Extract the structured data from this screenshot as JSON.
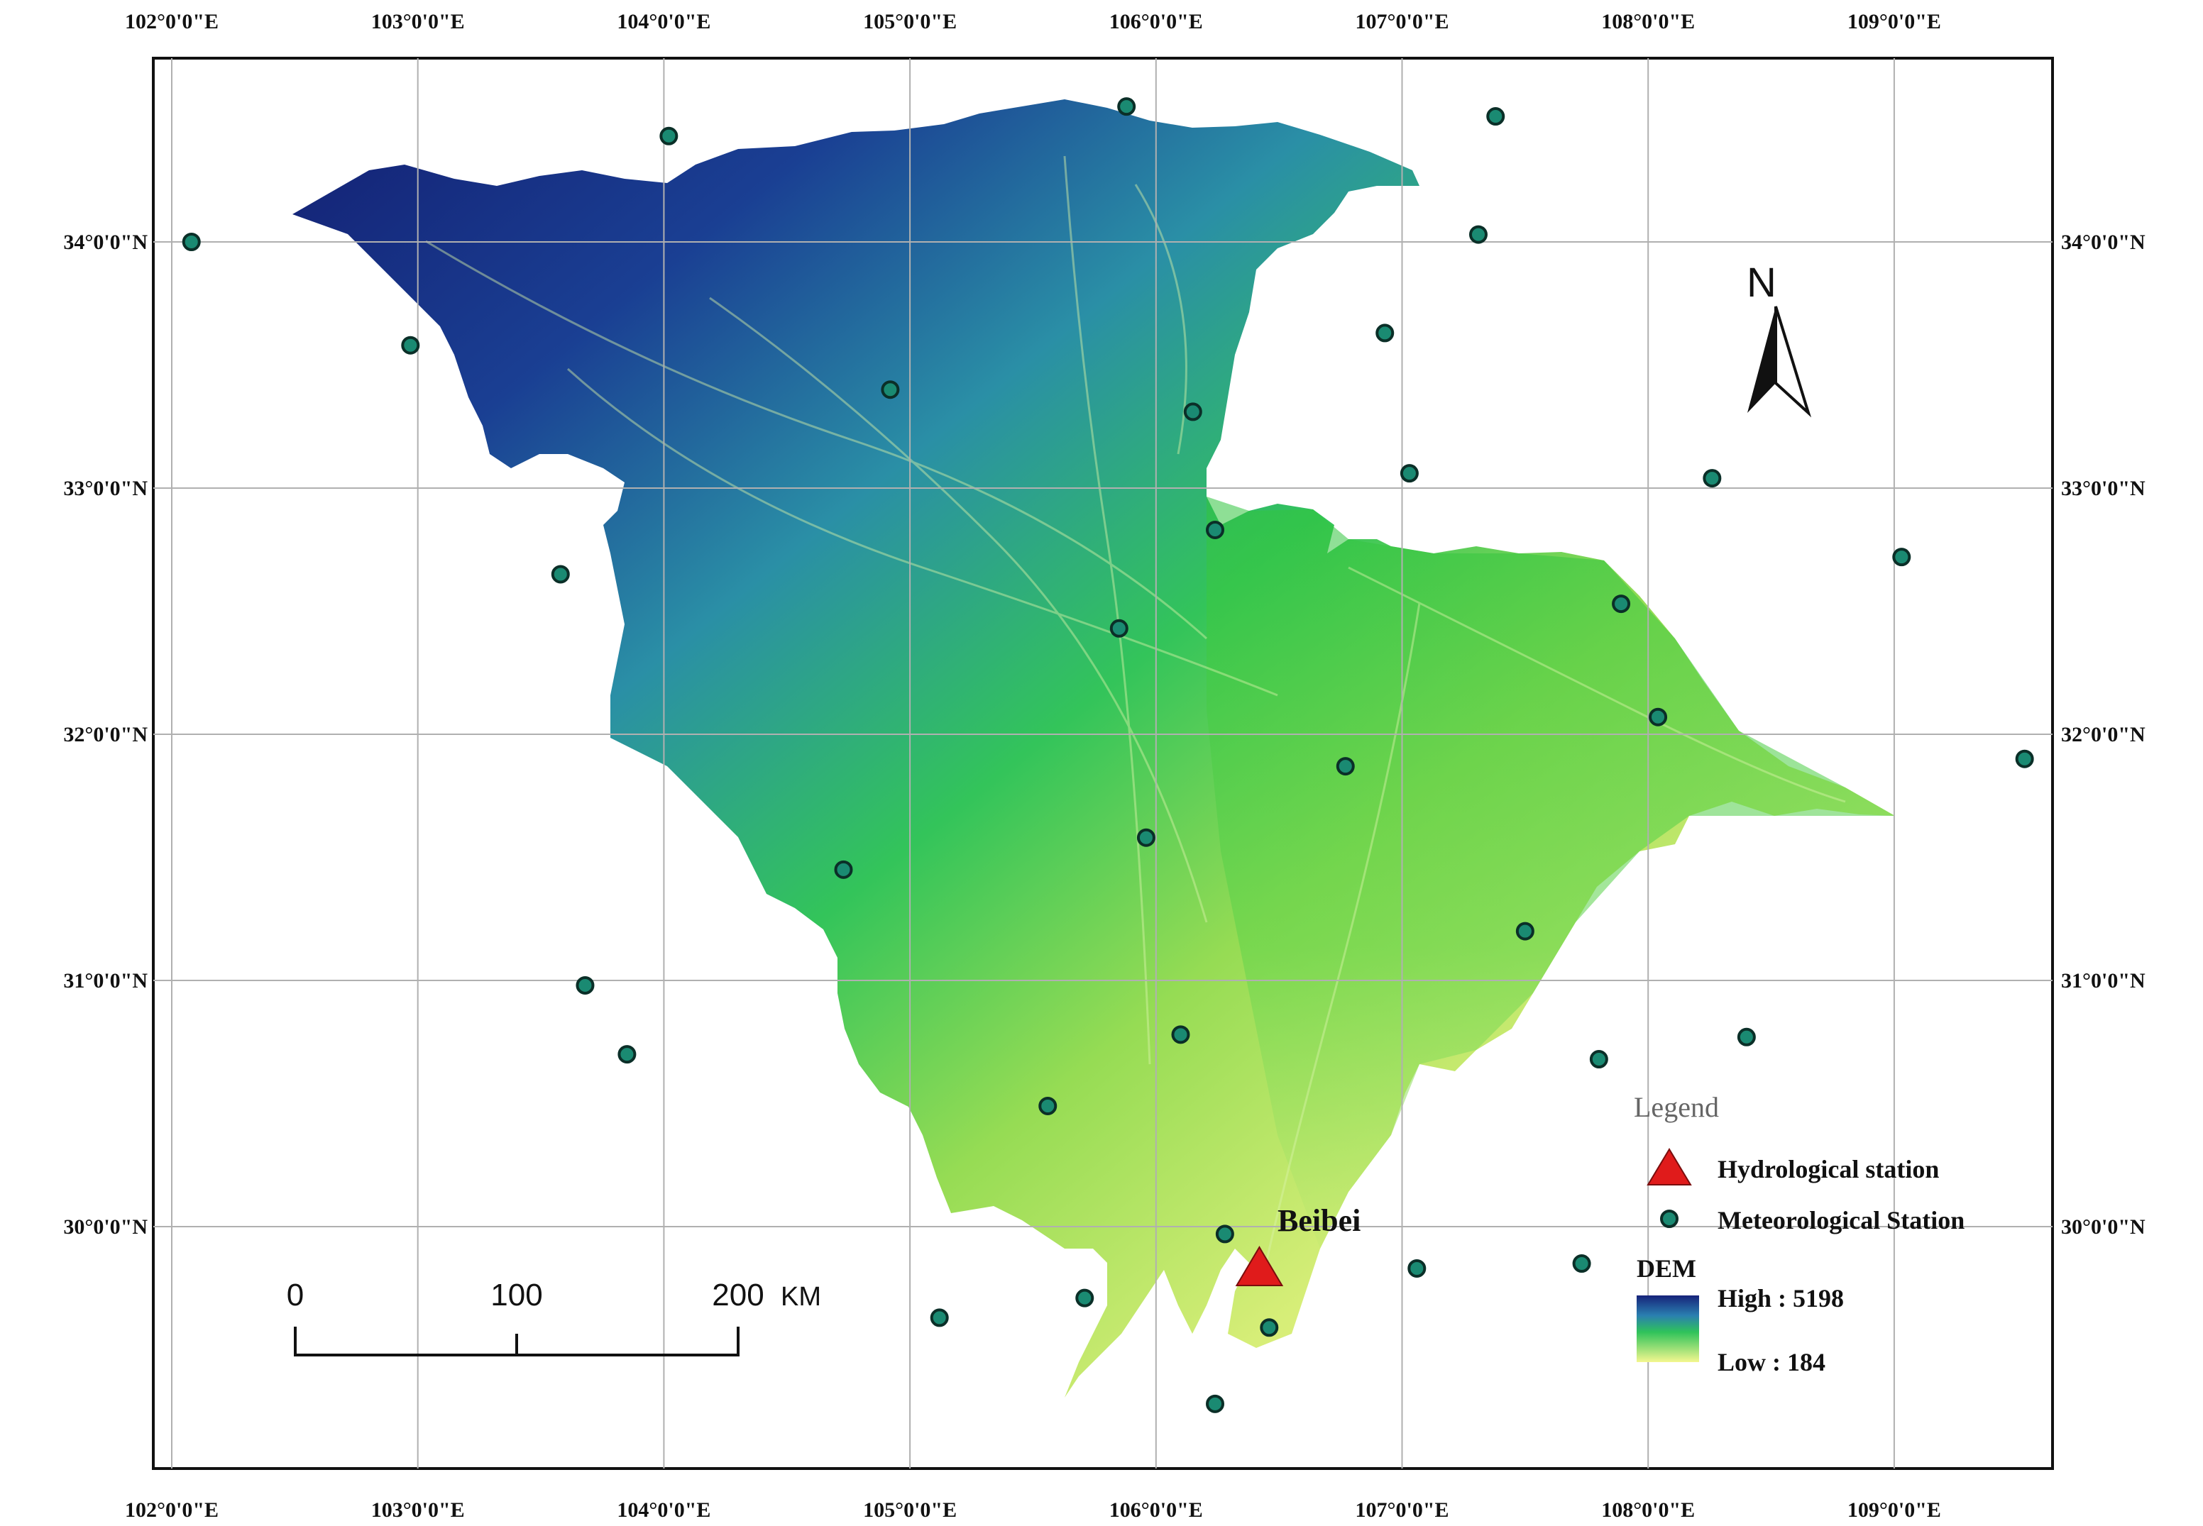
{
  "map": {
    "lon_labels": [
      "102°0'0\"E",
      "103°0'0\"E",
      "104°0'0\"E",
      "105°0'0\"E",
      "106°0'0\"E",
      "107°0'0\"E",
      "108°0'0\"E",
      "109°0'0\"E"
    ],
    "lat_labels": [
      "34°0'0\"N",
      "33°0'0\"N",
      "32°0'0\"N",
      "31°0'0\"N",
      "30°0'0\"N"
    ],
    "place_label": "Beibei",
    "north_letter": "N"
  },
  "legend": {
    "title": "Legend",
    "hydro_label": "Hydrological station",
    "meteo_label": "Meteorological Station",
    "dem_label": "DEM",
    "dem_high": "High : 5198",
    "dem_low": "Low : 184"
  },
  "scale_bar": {
    "ticks": [
      "0",
      "100",
      "200"
    ],
    "unit": "KM"
  },
  "colors": {
    "dem_high": "#16237a",
    "dem_mid": "#29c83a",
    "dem_low": "#f0f28c",
    "hydro_marker": "#e01b1b",
    "meteo_marker": "#1a8a72"
  },
  "stations": {
    "meteorological": [
      {
        "lon": 102.08,
        "lat": 34.0
      },
      {
        "lon": 102.97,
        "lat": 33.58
      },
      {
        "lon": 104.02,
        "lat": 34.43
      },
      {
        "lon": 105.88,
        "lat": 34.55
      },
      {
        "lon": 107.38,
        "lat": 34.51
      },
      {
        "lon": 107.31,
        "lat": 34.03
      },
      {
        "lon": 106.93,
        "lat": 33.63
      },
      {
        "lon": 104.92,
        "lat": 33.4
      },
      {
        "lon": 106.15,
        "lat": 33.31
      },
      {
        "lon": 107.03,
        "lat": 33.06
      },
      {
        "lon": 108.26,
        "lat": 33.04
      },
      {
        "lon": 106.24,
        "lat": 32.83
      },
      {
        "lon": 103.58,
        "lat": 32.65
      },
      {
        "lon": 109.03,
        "lat": 32.72
      },
      {
        "lon": 107.89,
        "lat": 32.53
      },
      {
        "lon": 105.85,
        "lat": 32.43
      },
      {
        "lon": 108.04,
        "lat": 32.07
      },
      {
        "lon": 106.77,
        "lat": 31.87
      },
      {
        "lon": 109.53,
        "lat": 31.9
      },
      {
        "lon": 105.96,
        "lat": 31.58
      },
      {
        "lon": 104.73,
        "lat": 31.45
      },
      {
        "lon": 107.5,
        "lat": 31.2
      },
      {
        "lon": 103.68,
        "lat": 30.98
      },
      {
        "lon": 106.1,
        "lat": 30.78
      },
      {
        "lon": 108.4,
        "lat": 30.77
      },
      {
        "lon": 103.85,
        "lat": 30.7
      },
      {
        "lon": 107.8,
        "lat": 30.68
      },
      {
        "lon": 105.56,
        "lat": 30.49
      },
      {
        "lon": 106.28,
        "lat": 29.97
      },
      {
        "lon": 107.06,
        "lat": 29.83
      },
      {
        "lon": 107.73,
        "lat": 29.85
      },
      {
        "lon": 105.71,
        "lat": 29.71
      },
      {
        "lon": 105.12,
        "lat": 29.63
      },
      {
        "lon": 106.46,
        "lat": 29.59
      },
      {
        "lon": 106.24,
        "lat": 29.28
      }
    ],
    "hydrological": [
      {
        "lon": 106.42,
        "lat": 29.83
      }
    ]
  }
}
